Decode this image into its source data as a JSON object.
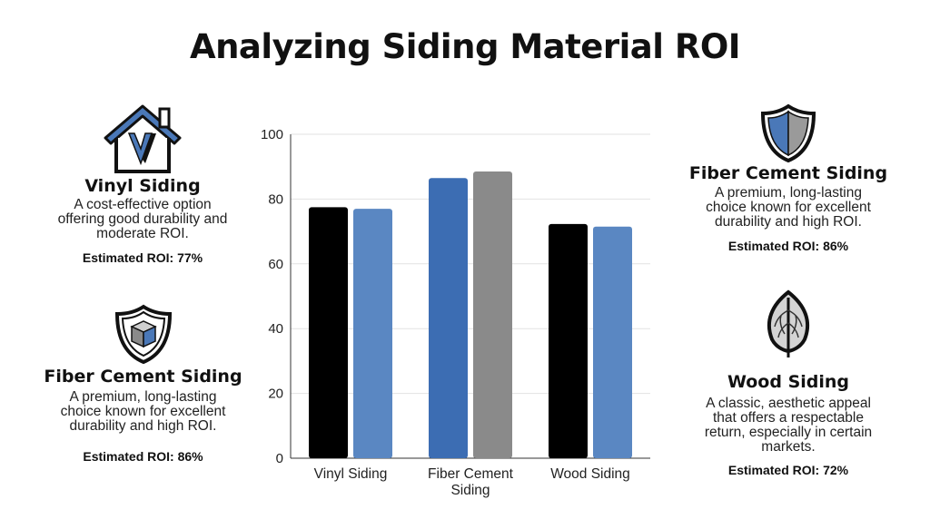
{
  "title": "Analyzing Siding Material ROI",
  "cards": {
    "left_top": {
      "name": "Vinyl Siding",
      "desc": "A cost-effective option offering good durability and moderate ROI.",
      "roi": "Estimated ROI: 77%",
      "icon": "house-icon"
    },
    "left_bottom": {
      "name": "Fiber Cement Siding",
      "desc": "A premium, long-lasting choice known for excellent durability and high ROI.",
      "roi": "Estimated ROI: 86%",
      "icon": "shield-cube-icon"
    },
    "right_top": {
      "name": "Fiber Cement Siding",
      "desc": "A premium, long-lasting choice known for excellent durability and high ROI.",
      "roi": "Estimated ROI: 86%",
      "icon": "shield-icon"
    },
    "right_bottom": {
      "name": "Wood Siding",
      "desc": "A classic, aesthetic appeal that offers a respectable return, especially in certain markets.",
      "roi": "Estimated ROI: 72%",
      "icon": "leaf-icon"
    }
  },
  "chart_data": {
    "type": "bar",
    "categories": [
      "Vinyl Siding",
      "Fiber Cement\nSiding",
      "Wood Siding"
    ],
    "series": [
      {
        "values": [
          77.5,
          86.5,
          72.3
        ],
        "colors": [
          "#000000",
          "#3c6db3",
          "#000000"
        ]
      },
      {
        "values": [
          77,
          88.5,
          71.5
        ],
        "colors": [
          "#5a87c2",
          "#8a8a8a",
          "#5a87c2"
        ]
      }
    ],
    "ylim": [
      0,
      100
    ],
    "yticks": [
      0,
      20,
      40,
      60,
      80,
      100
    ],
    "grid": true,
    "legend": "none"
  },
  "colors": {
    "accent_blue": "#4a78b8",
    "dark_blue": "#3c6db3",
    "gray": "#8a8a8a",
    "black": "#000000"
  }
}
